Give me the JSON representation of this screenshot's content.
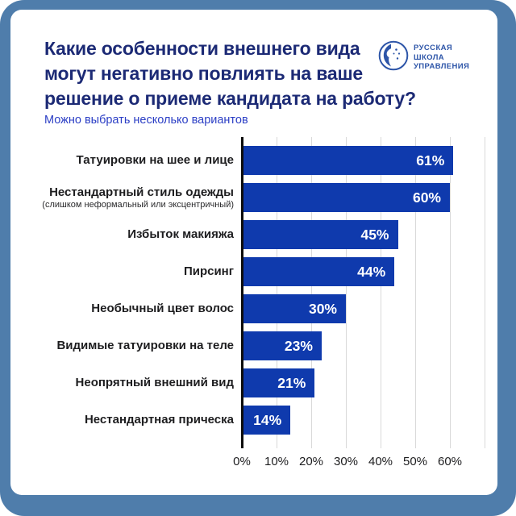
{
  "header": {
    "title": "Какие особенности внешнего вида могут негативно повлиять на ваше решение о приеме кандидата на работу?",
    "title_lines": [
      "Какие особенности внешнего вида",
      "могут негативно повлиять на ваше",
      "решение о приеме кандидата на работу?"
    ],
    "subtitle": "Можно выбрать несколько вариантов"
  },
  "logo": {
    "name": "Русская школа управления",
    "icon": "rshu-globe-face-icon",
    "lines": [
      "РУССКАЯ",
      "ШКОЛА",
      "УПРАВЛЕНИЯ"
    ]
  },
  "chart_data": {
    "type": "bar",
    "orientation": "horizontal",
    "title": "Какие особенности внешнего вида могут негативно повлиять на ваше решение о приеме кандидата на работу?",
    "subtitle": "Можно выбрать несколько вариантов",
    "categories": [
      "Татуировки на шее и лице",
      "Нестандартный стиль одежды (слишком неформальный или эксцентричный)",
      "Избыток макияжа",
      "Пирсинг",
      "Необычный цвет волос",
      "Видимые татуировки на теле",
      "Неопрятный внешний вид",
      "Нестандартная прическа"
    ],
    "values": [
      61,
      60,
      45,
      44,
      30,
      23,
      21,
      14
    ],
    "rows": [
      {
        "label": "Татуировки на шее и лице",
        "sublabel": "",
        "value": 61,
        "value_label": "61%"
      },
      {
        "label": "Нестандартный стиль одежды",
        "sublabel": "(слишком неформальный или эксцентричный)",
        "value": 60,
        "value_label": "60%"
      },
      {
        "label": "Избыток макияжа",
        "sublabel": "",
        "value": 45,
        "value_label": "45%"
      },
      {
        "label": "Пирсинг",
        "sublabel": "",
        "value": 44,
        "value_label": "44%"
      },
      {
        "label": "Необычный цвет волос",
        "sublabel": "",
        "value": 30,
        "value_label": "30%"
      },
      {
        "label": "Видимые татуировки на теле",
        "sublabel": "",
        "value": 23,
        "value_label": "23%"
      },
      {
        "label": "Неопрятный внешний вид",
        "sublabel": "",
        "value": 21,
        "value_label": "21%"
      },
      {
        "label": "Нестандартная прическа",
        "sublabel": "",
        "value": 14,
        "value_label": "14%"
      }
    ],
    "x_ticks": [
      "0%",
      "10%",
      "20%",
      "30%",
      "40%",
      "50%",
      "60%"
    ],
    "xlim": [
      0,
      70
    ],
    "grid": true,
    "legend": false,
    "value_labels_position": "inside-end",
    "bar_color": "#0f3aad"
  },
  "colors": {
    "background": "#4f7dab",
    "card": "#ffffff",
    "bar": "#0f3aad",
    "title_text": "#1c2a75",
    "subtitle_text": "#2b3ec5",
    "label_text": "#1d1d1f",
    "value_text": "#ffffff",
    "logo": "#2d55a8",
    "gridline": "#d9d9d9",
    "axis": "#0d0d0d"
  }
}
